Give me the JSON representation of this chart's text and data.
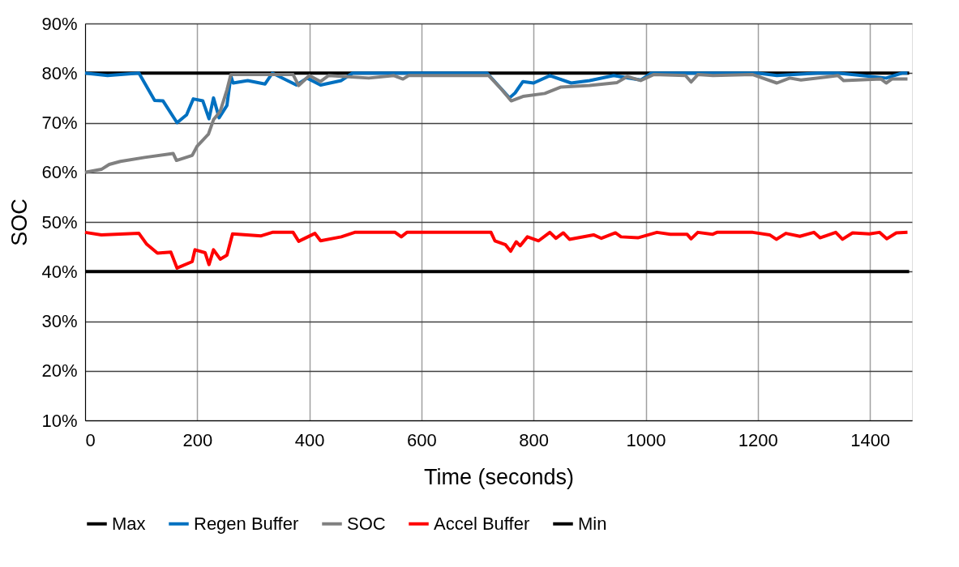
{
  "chart_data": {
    "type": "line",
    "xlabel": "Time (seconds)",
    "ylabel": "SOC",
    "xlim": [
      0,
      1475
    ],
    "xticks": [
      0,
      200,
      400,
      600,
      800,
      1000,
      1200,
      1400
    ],
    "ylim": [
      10,
      90
    ],
    "yticks": [
      {
        "value": 10,
        "label": "10%"
      },
      {
        "value": 20,
        "label": "20%"
      },
      {
        "value": 30,
        "label": "30%"
      },
      {
        "value": 40,
        "label": "40%"
      },
      {
        "value": 50,
        "label": "50%"
      },
      {
        "value": 60,
        "label": "60%"
      },
      {
        "value": 70,
        "label": "70%"
      },
      {
        "value": 80,
        "label": "80%"
      },
      {
        "value": 90,
        "label": "90%"
      }
    ],
    "grid": true,
    "legend": "bottom",
    "marker": "none",
    "line_style": "solid",
    "series": [
      {
        "name": "Max",
        "color": "#000000",
        "x": [
          0,
          1470
        ],
        "values": [
          80,
          80
        ]
      },
      {
        "name": "Regen Buffer",
        "color": "#0070c0",
        "x": [
          0,
          40,
          96,
          124,
          139,
          164,
          181,
          193,
          210,
          221,
          229,
          239,
          253,
          260,
          264,
          290,
          321,
          334,
          377,
          396,
          420,
          457,
          477,
          600,
          717,
          757,
          767,
          781,
          800,
          829,
          867,
          900,
          943,
          991,
          1010,
          1091,
          1200,
          1234,
          1306,
          1343,
          1429,
          1457,
          1467
        ],
        "values": [
          80,
          79.5,
          80,
          74.5,
          74.4,
          70,
          71.6,
          74.8,
          74.4,
          70.8,
          75,
          71,
          73.5,
          79.4,
          78,
          78.5,
          77.8,
          80,
          77.6,
          79,
          77.6,
          78.5,
          80,
          80,
          80,
          75,
          76,
          78.3,
          78,
          79.5,
          78,
          78.5,
          79.5,
          78.6,
          80,
          80,
          80,
          79.5,
          80,
          80,
          79,
          80,
          80
        ]
      },
      {
        "name": "SOC",
        "color": "#808080",
        "x": [
          0,
          29,
          43,
          63,
          106,
          157,
          163,
          191,
          200,
          220,
          229,
          241,
          253,
          260,
          371,
          381,
          400,
          420,
          434,
          506,
          551,
          567,
          577,
          720,
          743,
          760,
          781,
          820,
          849,
          900,
          949,
          967,
          991,
          1014,
          1071,
          1081,
          1093,
          1120,
          1191,
          1234,
          1257,
          1277,
          1343,
          1353,
          1420,
          1429,
          1439,
          1467
        ],
        "values": [
          60,
          60.6,
          61.6,
          62.2,
          63,
          63.8,
          62.4,
          63.4,
          65.3,
          67.7,
          70.6,
          72.3,
          76.6,
          79.7,
          79.7,
          77.5,
          79.5,
          78.3,
          79.5,
          79,
          79.5,
          78.8,
          79.5,
          79.5,
          76.7,
          74.4,
          75.3,
          75.9,
          77.2,
          77.5,
          78.1,
          79.3,
          78.5,
          79.7,
          79.5,
          78.2,
          79.7,
          79.5,
          79.7,
          78,
          79,
          78.6,
          79.5,
          78.5,
          78.8,
          78,
          78.8,
          78.8
        ]
      },
      {
        "name": "Accel Buffer",
        "color": "#ff0000",
        "x": [
          0,
          29,
          96,
          110,
          129,
          153,
          164,
          191,
          196,
          214,
          221,
          229,
          241,
          253,
          263,
          314,
          334,
          371,
          381,
          410,
          420,
          457,
          481,
          553,
          564,
          574,
          724,
          731,
          750,
          759,
          769,
          776,
          789,
          809,
          829,
          840,
          853,
          864,
          907,
          921,
          946,
          956,
          986,
          1020,
          1044,
          1074,
          1081,
          1093,
          1119,
          1127,
          1191,
          1221,
          1233,
          1250,
          1275,
          1300,
          1311,
          1339,
          1351,
          1369,
          1399,
          1417,
          1430,
          1447,
          1467
        ],
        "values": [
          47.9,
          47.4,
          47.7,
          45.5,
          43.7,
          43.9,
          40.7,
          42,
          44.4,
          43.8,
          41.4,
          44.4,
          42.5,
          43.3,
          47.6,
          47.2,
          47.9,
          47.9,
          46.1,
          47.7,
          46.2,
          47,
          47.9,
          47.9,
          47,
          47.9,
          47.9,
          46.2,
          45.4,
          44.1,
          46,
          45.2,
          47,
          46.2,
          47.9,
          46.7,
          47.8,
          46.5,
          47.4,
          46.7,
          47.8,
          47,
          46.8,
          47.9,
          47.5,
          47.5,
          46.6,
          47.9,
          47.5,
          47.9,
          47.9,
          47.4,
          46.5,
          47.7,
          47.1,
          47.9,
          46.8,
          47.9,
          46.5,
          47.8,
          47.6,
          47.9,
          46.6,
          47.8,
          47.9
        ]
      },
      {
        "name": "Min",
        "color": "#000000",
        "x": [
          0,
          1470
        ],
        "values": [
          40,
          40
        ]
      }
    ]
  }
}
